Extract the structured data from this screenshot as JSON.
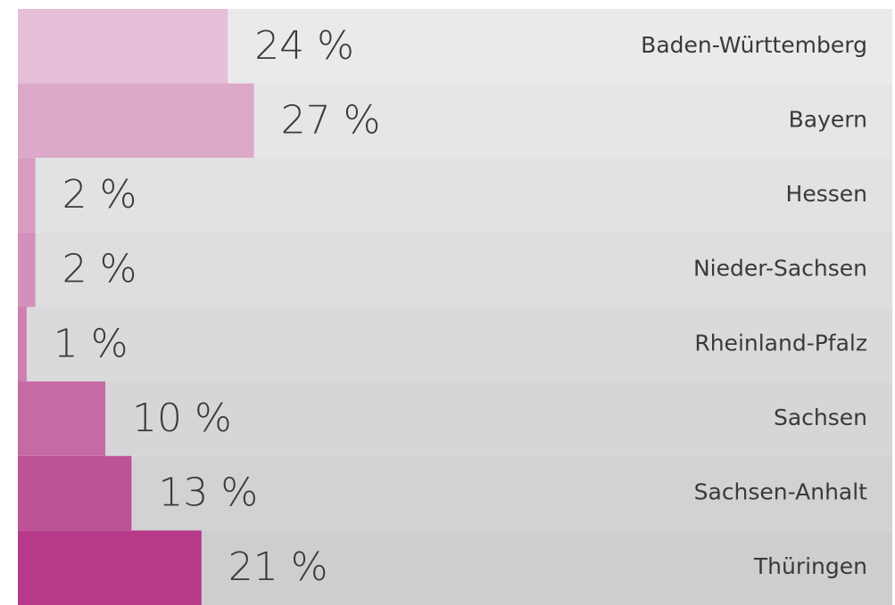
{
  "chart_data": {
    "type": "hbar",
    "categories": [
      "Baden-Württemberg",
      "Bayern",
      "Hessen",
      "Nieder-Sachsen",
      "Rheinland-Pfalz",
      "Sachsen",
      "Sachsen-Anhalt",
      "Thüringen"
    ],
    "values": [
      24,
      27,
      2,
      2,
      1,
      10,
      13,
      21
    ],
    "value_labels": [
      "24 %",
      "27 %",
      "2 %",
      "2 %",
      "1 %",
      "10 %",
      "13 %",
      "21 %"
    ],
    "colors": [
      "#e5bfd7",
      "#dca9c8",
      "#d79cc0",
      "#d390ba",
      "#cc7fb0",
      "#c56aa3",
      "#bd5296",
      "#b73a8a"
    ],
    "xlim": [
      0,
      100
    ]
  }
}
